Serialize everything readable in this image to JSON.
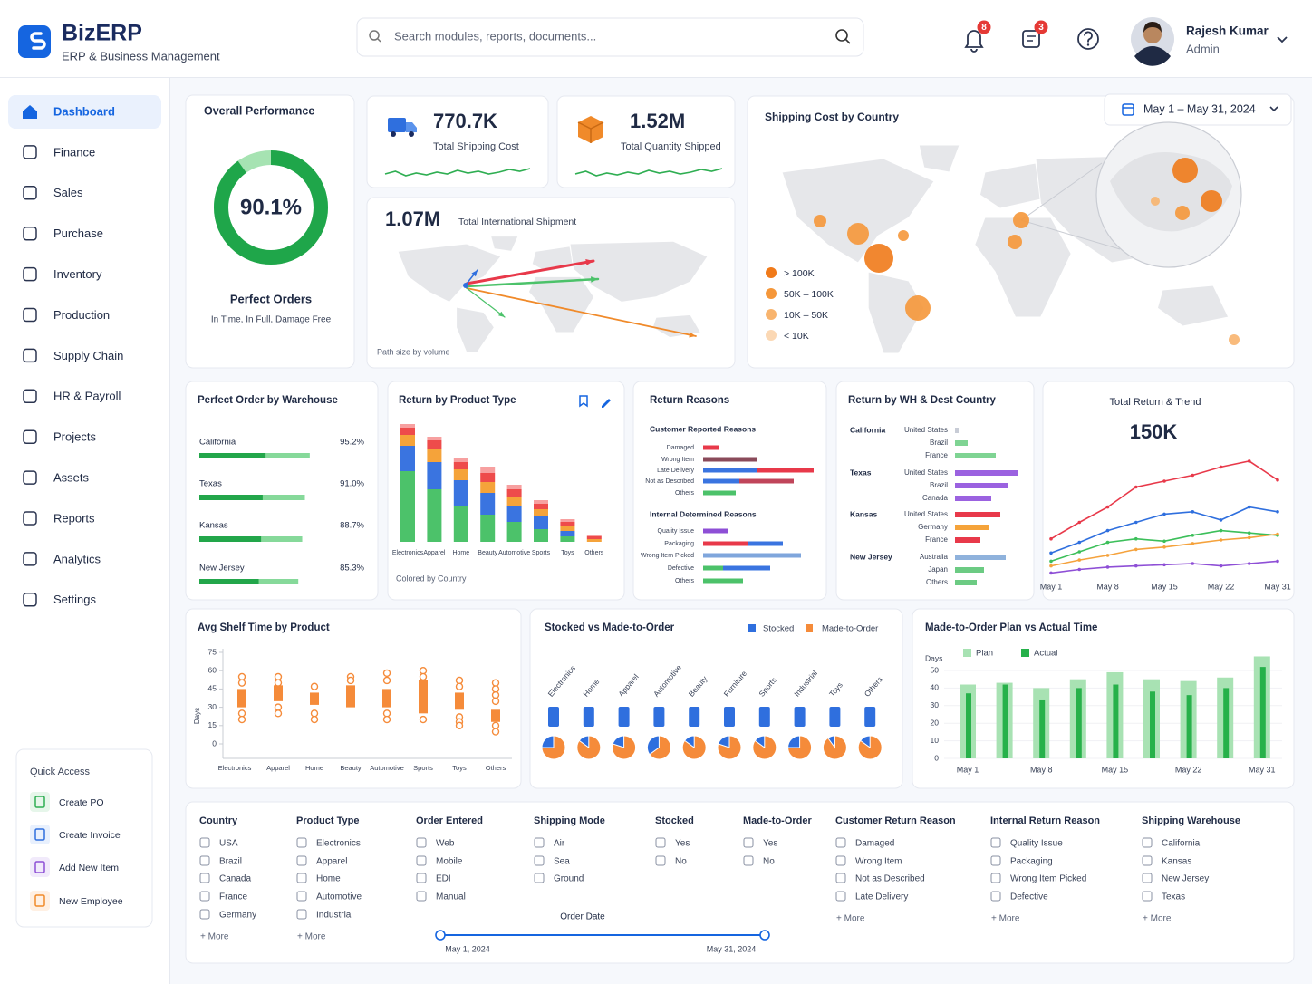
{
  "header": {
    "brand": "BizERP",
    "tagline": "ERP & Business Management",
    "search_placeholder": "Search modules, reports, documents...",
    "notifications": 8,
    "messages": 3,
    "user": {
      "name": "Rajesh Kumar",
      "role": "Admin"
    }
  },
  "sidebar": {
    "items": [
      "Dashboard",
      "Finance",
      "Sales",
      "Purchase",
      "Inventory",
      "Production",
      "Supply Chain",
      "HR & Payroll",
      "Projects",
      "Assets",
      "Reports",
      "Analytics",
      "Settings"
    ],
    "quick_access": {
      "title": "Quick Access",
      "items": [
        "Create PO",
        "Create Invoice",
        "Add New Item",
        "New Employee"
      ]
    }
  },
  "overall_performance": {
    "title": "Overall Performance",
    "value": 90.1,
    "value_label": "90.1%",
    "ylim": [
      0,
      100
    ],
    "color": "#1fa64a",
    "track_color": "#a6e3b2",
    "label": "Perfect Orders",
    "sublabel": "In Time, In Full, Damage Free"
  },
  "kpis": [
    {
      "value": "770.7K",
      "label": "Total Shipping Cost"
    },
    {
      "value": "1.52M",
      "label": "Total Quantity Shipped"
    }
  ],
  "international": {
    "value": "1.07M",
    "label": "Total International Shipment",
    "footnote": "Path size by volume"
  },
  "shipping_cost": {
    "title": "Shipping Cost by Country",
    "date_range": "May 1 – May 31, 2024",
    "legend": [
      {
        "label": "> 100K",
        "color": "#f07a1a"
      },
      {
        "label": "50K – 100K",
        "color": "#f5973a"
      },
      {
        "label": "10K – 50K",
        "color": "#f8b46e"
      },
      {
        "label": "< 10K",
        "color": "#fbd8b4"
      }
    ]
  },
  "perfect_order_by_warehouse": {
    "title": "Perfect Order by Warehouse",
    "xlim": [
      0,
      100
    ],
    "rows": [
      {
        "name": "California",
        "value": 95.2,
        "value_label": "95.2%"
      },
      {
        "name": "Texas",
        "value": 91.0,
        "value_label": "91.0%"
      },
      {
        "name": "Kansas",
        "value": 88.7,
        "value_label": "88.7%"
      },
      {
        "name": "New Jersey",
        "value": 85.3,
        "value_label": "85.3%"
      }
    ]
  },
  "return_by_product_type": {
    "type": "bar",
    "title": "Return by Product Type",
    "categories": [
      "Electronics",
      "Apparel",
      "Home",
      "Beauty",
      "Automotive",
      "Sports",
      "Toys",
      "Others"
    ],
    "ylim": [
      0,
      140
    ],
    "series": [
      {
        "color": "#4cc26a",
        "values": [
          78,
          58,
          40,
          30,
          22,
          14,
          6,
          0
        ]
      },
      {
        "color": "#3a74e0",
        "values": [
          28,
          30,
          28,
          24,
          18,
          14,
          6,
          0
        ]
      },
      {
        "color": "#f5a33a",
        "values": [
          12,
          14,
          12,
          12,
          10,
          8,
          5,
          3
        ]
      },
      {
        "color": "#ee4b4b",
        "values": [
          8,
          10,
          8,
          10,
          8,
          6,
          5,
          3
        ]
      },
      {
        "color": "#f7a0a0",
        "values": [
          4,
          4,
          5,
          7,
          5,
          4,
          3,
          2
        ]
      }
    ],
    "footnote": "Colored by Country"
  },
  "return_reasons": {
    "title": "Return Reasons",
    "groups": [
      {
        "title": "Customer Reported Reasons",
        "rows": [
          {
            "label": "Damaged",
            "values": [
              17
            ],
            "colors": [
              "#e8394a"
            ]
          },
          {
            "label": "Wrong Item",
            "values": [
              60
            ],
            "colors": [
              "#8a4a5a"
            ]
          },
          {
            "label": "Late Delivery",
            "values": [
              60,
              62
            ],
            "colors": [
              "#3a74e0",
              "#e8394a"
            ]
          },
          {
            "label": "Not as Described",
            "values": [
              40,
              60
            ],
            "colors": [
              "#3a74e0",
              "#c0455a"
            ]
          },
          {
            "label": "Others",
            "values": [
              36
            ],
            "colors": [
              "#4cc26a"
            ]
          }
        ]
      },
      {
        "title": "Internal Determined Reasons",
        "rows": [
          {
            "label": "Quality Issue",
            "values": [
              28
            ],
            "colors": [
              "#8e4fd6"
            ]
          },
          {
            "label": "Packaging",
            "values": [
              50,
              38
            ],
            "colors": [
              "#e8394a",
              "#3a74e0"
            ]
          },
          {
            "label": "Wrong Item Picked",
            "values": [
              108
            ],
            "colors": [
              "#7fa6dc"
            ]
          },
          {
            "label": "Defective",
            "values": [
              22,
              52
            ],
            "colors": [
              "#4cc26a",
              "#3a74e0"
            ]
          },
          {
            "label": "Others",
            "values": [
              44
            ],
            "colors": [
              "#4cc26a"
            ]
          }
        ]
      }
    ]
  },
  "return_by_wh_country": {
    "title": "Return by WH & Dest Country",
    "groups": [
      {
        "warehouse": "California",
        "rows": [
          {
            "country": "United States",
            "value": 4,
            "color": "#c8ccd6"
          },
          {
            "country": "Brazil",
            "value": 14,
            "color": "#7fd493"
          },
          {
            "country": "France",
            "value": 45,
            "color": "#7fd493"
          }
        ]
      },
      {
        "warehouse": "Texas",
        "rows": [
          {
            "country": "United States",
            "value": 70,
            "color": "#9b62e0"
          },
          {
            "country": "Brazil",
            "value": 58,
            "color": "#9b62e0"
          },
          {
            "country": "Canada",
            "value": 40,
            "color": "#9b62e0"
          }
        ]
      },
      {
        "warehouse": "Kansas",
        "rows": [
          {
            "country": "United States",
            "value": 50,
            "color": "#e8394a"
          },
          {
            "country": "Germany",
            "value": 38,
            "color": "#f5a33a"
          },
          {
            "country": "France",
            "value": 28,
            "color": "#e8394a"
          }
        ]
      },
      {
        "warehouse": "New Jersey",
        "rows": [
          {
            "country": "Australia",
            "value": 56,
            "color": "#8fb2dc"
          },
          {
            "country": "Japan",
            "value": 32,
            "color": "#6ccb83"
          },
          {
            "country": "Others",
            "value": 24,
            "color": "#6ccb83"
          }
        ]
      }
    ]
  },
  "total_return_trend": {
    "type": "line",
    "title": "Total Return & Trend",
    "value": "150K",
    "categories": [
      "May 1",
      null,
      "May 8",
      null,
      "May 15",
      null,
      "May 22",
      null,
      "May 31"
    ],
    "ylim": [
      0,
      100
    ],
    "series": [
      {
        "color": "#e8394a",
        "values": [
          31,
          45,
          58,
          75,
          80,
          85,
          92,
          97,
          81
        ]
      },
      {
        "color": "#2f6fde",
        "values": [
          19,
          28,
          38,
          45,
          52,
          54,
          47,
          58,
          54
        ]
      },
      {
        "color": "#3cbf5a",
        "values": [
          12,
          20,
          28,
          31,
          29,
          34,
          38,
          36,
          34
        ]
      },
      {
        "color": "#f5a23c",
        "values": [
          8,
          13,
          17,
          22,
          24,
          27,
          30,
          32,
          35
        ]
      },
      {
        "color": "#8e4fd6",
        "values": [
          2,
          5,
          7,
          8,
          9,
          10,
          8,
          10,
          12
        ]
      }
    ]
  },
  "avg_shelf_time": {
    "type": "box",
    "title": "Avg Shelf Time by Product",
    "ylabel": "Days",
    "ylim": [
      0,
      75
    ],
    "yticks": [
      0,
      15,
      30,
      45,
      60,
      75
    ],
    "color": "#f58b3a",
    "categories": [
      "Electronics",
      "Apparel",
      "Home",
      "Beauty",
      "Automotive",
      "Sports",
      "Toys",
      "Others"
    ],
    "boxes": [
      {
        "q1": 30,
        "q3": 45,
        "points": [
          55,
          50,
          25,
          20
        ]
      },
      {
        "q1": 35,
        "q3": 48,
        "points": [
          55,
          50,
          30,
          25
        ]
      },
      {
        "q1": 32,
        "q3": 42,
        "points": [
          47,
          25,
          20
        ]
      },
      {
        "q1": 30,
        "q3": 48,
        "points": [
          55,
          52
        ]
      },
      {
        "q1": 30,
        "q3": 45,
        "points": [
          58,
          52,
          25,
          20
        ]
      },
      {
        "q1": 25,
        "q3": 52,
        "points": [
          60,
          55,
          20
        ]
      },
      {
        "q1": 28,
        "q3": 42,
        "points": [
          52,
          47,
          22,
          18,
          15
        ]
      },
      {
        "q1": 18,
        "q3": 28,
        "points": [
          50,
          45,
          40,
          35,
          15,
          10
        ]
      }
    ]
  },
  "stocked_vs_mto": {
    "type": "pie",
    "title": "Stocked vs Made-to-Order",
    "legend": [
      {
        "name": "Stocked",
        "color": "#2f6fde"
      },
      {
        "name": "Made-to-Order",
        "color": "#f58b3a"
      }
    ],
    "categories": [
      "Electronics",
      "Home",
      "Apparel",
      "Automotive",
      "Beauty",
      "Furniture",
      "Sports",
      "Industrial",
      "Toys",
      "Others"
    ],
    "values": [
      25,
      15,
      20,
      35,
      15,
      20,
      15,
      25,
      10,
      15
    ],
    "ylim": [
      0,
      100
    ]
  },
  "mto_plan_vs_actual": {
    "type": "bar",
    "title": "Made-to-Order Plan vs Actual Time",
    "ylabel": "Days",
    "ylim": [
      0,
      60
    ],
    "yticks": [
      0,
      10,
      20,
      30,
      40,
      50
    ],
    "categories": [
      "May 1",
      null,
      "May 8",
      null,
      "May 15",
      null,
      "May 22",
      null,
      "May 31"
    ],
    "series": [
      {
        "name": "Plan",
        "color": "#a8e2b3",
        "values": [
          42,
          43,
          40,
          45,
          49,
          45,
          44,
          46,
          58
        ]
      },
      {
        "name": "Actual",
        "color": "#26b14a",
        "values": [
          37,
          42,
          33,
          40,
          42,
          38,
          36,
          40,
          52
        ]
      }
    ]
  },
  "filters": {
    "columns": [
      {
        "title": "Country",
        "options": [
          "USA",
          "Brazil",
          "Canada",
          "France",
          "Germany"
        ],
        "more": "+ More"
      },
      {
        "title": "Product Type",
        "options": [
          "Electronics",
          "Apparel",
          "Home",
          "Automotive",
          "Industrial"
        ],
        "more": "+ More"
      },
      {
        "title": "Order Entered",
        "options": [
          "Web",
          "Mobile",
          "EDI",
          "Manual"
        ]
      },
      {
        "title": "Shipping Mode",
        "options": [
          "Air",
          "Sea",
          "Ground"
        ]
      },
      {
        "title": "Stocked",
        "options": [
          "Yes",
          "No"
        ]
      },
      {
        "title": "Made-to-Order",
        "options": [
          "Yes",
          "No"
        ]
      },
      {
        "title": "Customer Return Reason",
        "options": [
          "Damaged",
          "Wrong Item",
          "Not as Described",
          "Late Delivery"
        ],
        "more": "+ More"
      },
      {
        "title": "Internal Return Reason",
        "options": [
          "Quality Issue",
          "Packaging",
          "Wrong Item Picked",
          "Defective"
        ],
        "more": "+ More"
      },
      {
        "title": "Shipping Warehouse",
        "options": [
          "California",
          "Kansas",
          "New Jersey",
          "Texas"
        ],
        "more": "+ More"
      }
    ],
    "order_date": {
      "label": "Order Date",
      "start": "May 1, 2024",
      "end": "May 31, 2024"
    }
  }
}
